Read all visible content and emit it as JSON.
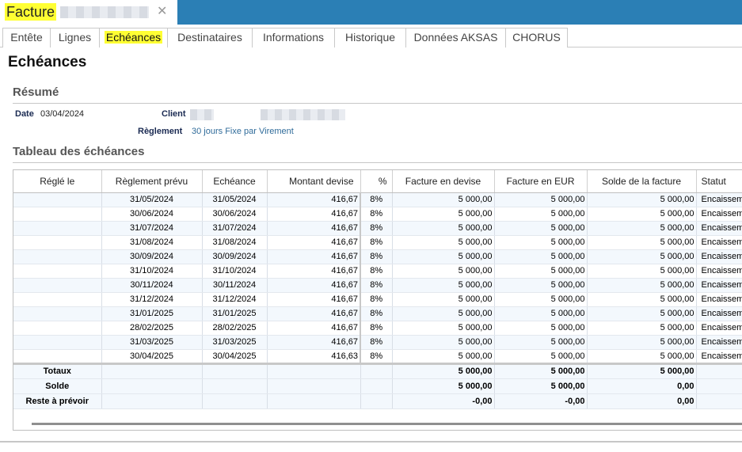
{
  "window": {
    "title": "Facture"
  },
  "tabs": [
    "Entête",
    "Lignes",
    "Echéances",
    "Destinataires",
    "Informations",
    "Historique",
    "Données AKSAS",
    "CHORUS"
  ],
  "page_title": "Echéances",
  "resume": {
    "heading": "Résumé",
    "date_label": "Date",
    "date_value": "03/04/2024",
    "client_label": "Client",
    "reglement_label": "Règlement",
    "reglement_value": "30 jours Fixe par Virement"
  },
  "table": {
    "heading": "Tableau des échéances",
    "columns": [
      "Réglé le",
      "Règlement prévu",
      "Echéance",
      "Montant devise",
      "%",
      "Facture en devise",
      "Facture en EUR",
      "Solde de la facture",
      "Statut"
    ],
    "rows": [
      [
        "",
        "31/05/2024",
        "31/05/2024",
        "416,67",
        "8%",
        "5 000,00",
        "5 000,00",
        "5 000,00",
        "Encaissem"
      ],
      [
        "",
        "30/06/2024",
        "30/06/2024",
        "416,67",
        "8%",
        "5 000,00",
        "5 000,00",
        "5 000,00",
        "Encaissem"
      ],
      [
        "",
        "31/07/2024",
        "31/07/2024",
        "416,67",
        "8%",
        "5 000,00",
        "5 000,00",
        "5 000,00",
        "Encaissem"
      ],
      [
        "",
        "31/08/2024",
        "31/08/2024",
        "416,67",
        "8%",
        "5 000,00",
        "5 000,00",
        "5 000,00",
        "Encaissem"
      ],
      [
        "",
        "30/09/2024",
        "30/09/2024",
        "416,67",
        "8%",
        "5 000,00",
        "5 000,00",
        "5 000,00",
        "Encaissem"
      ],
      [
        "",
        "31/10/2024",
        "31/10/2024",
        "416,67",
        "8%",
        "5 000,00",
        "5 000,00",
        "5 000,00",
        "Encaissem"
      ],
      [
        "",
        "30/11/2024",
        "30/11/2024",
        "416,67",
        "8%",
        "5 000,00",
        "5 000,00",
        "5 000,00",
        "Encaissem"
      ],
      [
        "",
        "31/12/2024",
        "31/12/2024",
        "416,67",
        "8%",
        "5 000,00",
        "5 000,00",
        "5 000,00",
        "Encaissem"
      ],
      [
        "",
        "31/01/2025",
        "31/01/2025",
        "416,67",
        "8%",
        "5 000,00",
        "5 000,00",
        "5 000,00",
        "Encaissem"
      ],
      [
        "",
        "28/02/2025",
        "28/02/2025",
        "416,67",
        "8%",
        "5 000,00",
        "5 000,00",
        "5 000,00",
        "Encaissem"
      ],
      [
        "",
        "31/03/2025",
        "31/03/2025",
        "416,67",
        "8%",
        "5 000,00",
        "5 000,00",
        "5 000,00",
        "Encaissem"
      ],
      [
        "",
        "30/04/2025",
        "30/04/2025",
        "416,63",
        "8%",
        "5 000,00",
        "5 000,00",
        "5 000,00",
        "Encaissem"
      ]
    ],
    "footer": [
      {
        "label": "Totaux",
        "devise": "5 000,00",
        "eur": "5 000,00",
        "solde": "5 000,00"
      },
      {
        "label": "Solde",
        "devise": "5 000,00",
        "eur": "5 000,00",
        "solde": "0,00"
      },
      {
        "label": "Reste à prévoir",
        "devise": "-0,00",
        "eur": "-0,00",
        "solde": "0,00"
      }
    ]
  },
  "colors": {
    "titlebar": "#2b7fb5",
    "highlight": "#ffff33",
    "row_alt": "#f3f8fd"
  }
}
